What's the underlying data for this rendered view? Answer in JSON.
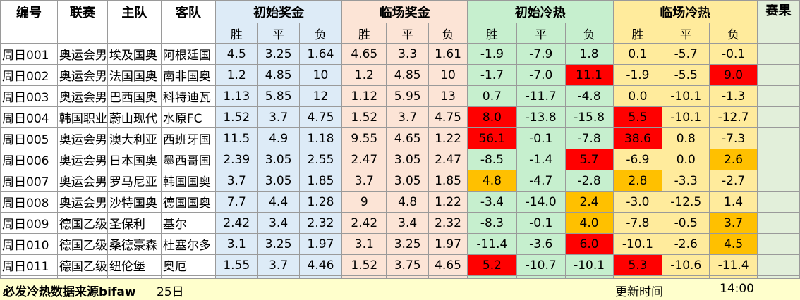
{
  "headers": {
    "id": "编号",
    "league": "联赛",
    "home": "主队",
    "away": "客队",
    "groups": [
      "初始奖金",
      "临场奖金",
      "初始冷热",
      "临场冷热"
    ],
    "result": "赛果",
    "sub": [
      "胜",
      "平",
      "负"
    ]
  },
  "rows": [
    {
      "id": "周日001",
      "league": "奥运会男",
      "home": "埃及国奥",
      "away": "阿根廷国",
      "v": [
        "4.5",
        "3.25",
        "1.64",
        "4.65",
        "3.3",
        "1.61",
        "-1.9",
        "-7.9",
        "1.8",
        "0.1",
        "-5.7",
        "-0.1"
      ],
      "hl": [
        "",
        "",
        "",
        "",
        "",
        "",
        "",
        "",
        "",
        "",
        "",
        ""
      ]
    },
    {
      "id": "周日002",
      "league": "奥运会男",
      "home": "法国国奥",
      "away": "南非国奥",
      "v": [
        "1.2",
        "4.85",
        "10",
        "1.2",
        "4.85",
        "10",
        "-1.7",
        "-7.0",
        "11.1",
        "-1.9",
        "-5.5",
        "9.0"
      ],
      "hl": [
        "",
        "",
        "",
        "",
        "",
        "",
        "",
        "",
        "r",
        "",
        "",
        "r"
      ]
    },
    {
      "id": "周日003",
      "league": "奥运会男",
      "home": "巴西国奥",
      "away": "科特迪瓦",
      "v": [
        "1.13",
        "5.85",
        "12",
        "1.12",
        "5.95",
        "13",
        "0.7",
        "-11.7",
        "-4.8",
        "0.0",
        "-10.1",
        "-1.3"
      ],
      "hl": [
        "",
        "",
        "",
        "",
        "",
        "",
        "",
        "",
        "",
        "",
        "",
        ""
      ]
    },
    {
      "id": "周日004",
      "league": "韩国职业",
      "home": "蔚山现代",
      "away": "水原FC",
      "v": [
        "1.52",
        "3.7",
        "4.75",
        "1.52",
        "3.7",
        "4.75",
        "8.0",
        "-13.8",
        "-15.8",
        "5.5",
        "-10.1",
        "-12.7"
      ],
      "hl": [
        "",
        "",
        "",
        "",
        "",
        "",
        "r",
        "",
        "",
        "r",
        "",
        ""
      ]
    },
    {
      "id": "周日005",
      "league": "奥运会男",
      "home": "澳大利亚",
      "away": "西班牙国",
      "v": [
        "11.5",
        "4.9",
        "1.18",
        "9.55",
        "4.65",
        "1.22",
        "56.1",
        "-0.1",
        "-7.8",
        "38.6",
        "0.8",
        "-7.3"
      ],
      "hl": [
        "",
        "",
        "",
        "",
        "",
        "",
        "r",
        "",
        "",
        "r",
        "",
        ""
      ]
    },
    {
      "id": "周日006",
      "league": "奥运会男",
      "home": "日本国奥",
      "away": "墨西哥国",
      "v": [
        "2.39",
        "3.05",
        "2.55",
        "2.47",
        "3.05",
        "2.47",
        "-8.5",
        "-1.4",
        "5.7",
        "-6.9",
        "0.0",
        "2.6"
      ],
      "hl": [
        "",
        "",
        "",
        "",
        "",
        "",
        "",
        "",
        "r",
        "",
        "",
        "o"
      ]
    },
    {
      "id": "周日007",
      "league": "奥运会男",
      "home": "罗马尼亚",
      "away": "韩国国奥",
      "v": [
        "3.7",
        "3.05",
        "1.85",
        "3.7",
        "3.05",
        "1.85",
        "4.8",
        "-4.7",
        "-2.8",
        "2.8",
        "-3.3",
        "-2.7"
      ],
      "hl": [
        "",
        "",
        "",
        "",
        "",
        "",
        "o",
        "",
        "",
        "o",
        "",
        ""
      ]
    },
    {
      "id": "周日008",
      "league": "奥运会男",
      "home": "沙特国奥",
      "away": "德国国奥",
      "v": [
        "7.7",
        "4.4",
        "1.28",
        "9",
        "4.8",
        "1.22",
        "-3.4",
        "-14.0",
        "2.4",
        "-3.0",
        "-12.5",
        "1.4"
      ],
      "hl": [
        "",
        "",
        "",
        "",
        "",
        "",
        "",
        "",
        "o",
        "",
        "",
        ""
      ]
    },
    {
      "id": "周日009",
      "league": "德国乙级",
      "home": "圣保利",
      "away": "基尔",
      "v": [
        "2.42",
        "3.4",
        "2.32",
        "2.42",
        "3.4",
        "2.32",
        "-8.3",
        "-0.1",
        "4.0",
        "-7.8",
        "-0.5",
        "3.7"
      ],
      "hl": [
        "",
        "",
        "",
        "",
        "",
        "",
        "",
        "",
        "o",
        "",
        "",
        "o"
      ]
    },
    {
      "id": "周日010",
      "league": "德国乙级",
      "home": "桑德豪森",
      "away": "杜塞尔多",
      "v": [
        "3.1",
        "3.25",
        "1.97",
        "3.1",
        "3.25",
        "1.97",
        "-11.4",
        "-3.6",
        "6.0",
        "-10.1",
        "-2.6",
        "4.5"
      ],
      "hl": [
        "",
        "",
        "",
        "",
        "",
        "",
        "",
        "",
        "r",
        "",
        "",
        "o"
      ]
    },
    {
      "id": "周日011",
      "league": "德国乙级",
      "home": "纽伦堡",
      "away": "奥厄",
      "v": [
        "1.55",
        "3.7",
        "4.46",
        "1.52",
        "3.75",
        "4.65",
        "5.2",
        "-10.7",
        "-10.1",
        "5.3",
        "-10.6",
        "-11.4"
      ],
      "hl": [
        "",
        "",
        "",
        "",
        "",
        "",
        "r",
        "",
        "",
        "r",
        "",
        ""
      ]
    }
  ],
  "footer": {
    "source": "必发冷热数据来源bifaw",
    "day": "25日",
    "update_label": "更新时间",
    "update_time": "14:00"
  },
  "colors": {
    "red": "#ff0000",
    "orange": "#ffc000",
    "blue": "#ddebf7",
    "pink": "#fce4d6",
    "green": "#c6efce",
    "yellow": "#ffeb9c"
  }
}
